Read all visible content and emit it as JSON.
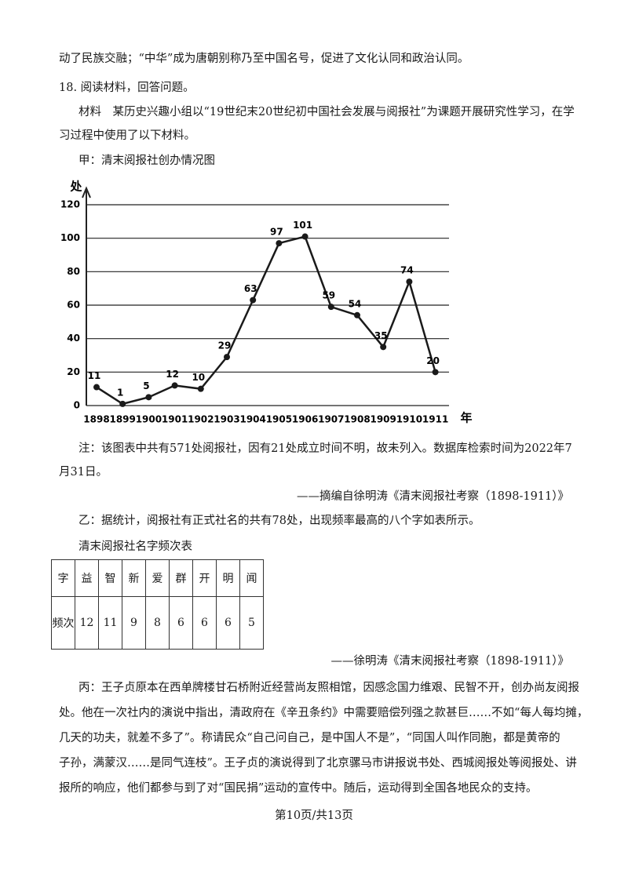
{
  "intro": "动了民族交融；“中华”成为唐朝别称乃至中国名号，促进了文化认同和政治认同。",
  "question": "18. 阅读材料，回答问题。",
  "material_a": [
    "材料　某历史兴趣小组以“19世纪末20世纪初中国社会发展与阅报社”为课题开展研究性学习，在学",
    "习过程中使用了以下材料。"
  ],
  "chart_caption": "甲：清末阅报社创办情况图",
  "chart_data": {
    "type": "line",
    "y_label": "处",
    "x_label": "年",
    "categories": [
      "1898",
      "1899",
      "1900",
      "1901",
      "1902",
      "1903",
      "1904",
      "1905",
      "1906",
      "1907",
      "1908",
      "1909",
      "1910",
      "1911"
    ],
    "values": [
      11,
      1,
      5,
      12,
      10,
      29,
      63,
      97,
      101,
      59,
      54,
      35,
      74,
      20
    ],
    "color": "#1a1a1a",
    "ylim": [
      0,
      120
    ],
    "yticks": [
      0,
      20,
      40,
      60,
      80,
      100,
      120
    ],
    "grid": true
  },
  "note": [
    "注：该图表中共有571处阅报社，因有21处成立时间不明，故未列入。数据库检索时间为2022年7",
    "月31日。"
  ],
  "source_a": "——摘编自徐明涛《清末阅报社考察（1898-1911）》",
  "material_b": "乙：据统计，阅报社有正式社名的共有78处，出现频率最高的八个字如表所示。",
  "table_title": "清末阅报社名字频次表",
  "table": {
    "rows": [
      [
        "字",
        "益",
        "智",
        "新",
        "爱",
        "群",
        "开",
        "明",
        "闻"
      ],
      [
        "频次",
        12,
        11,
        9,
        8,
        6,
        6,
        6,
        5
      ]
    ]
  },
  "source_b": "——徐明涛《清末阅报社考察（1898-1911）》",
  "material_c": [
    "丙：王子贞原本在西单牌楼甘石桥附近经营尚友照相馆，因感念国力维艰、民智不开，创办尚友阅报",
    "处。他在一次社内的演说中指出，清政府在《辛丑条约》中需要赔偿列强之款甚巨……不如“每人每均摊，",
    "几天的功夫，就差不多了”。称请民众“自己问自己，是中国人不是”，“同国人叫作同胞，都是黄帝的",
    "子孙，满蒙汉……是同气连枝”。王子贞的演说得到了北京骡马市讲报说书处、西城阅报处等阅报处、讲",
    "报所的响应，他们都参与到了对“国民捐”运动的宣传中。随后，运动得到全国各地民众的支持。"
  ],
  "footer": "第10页/共13页"
}
